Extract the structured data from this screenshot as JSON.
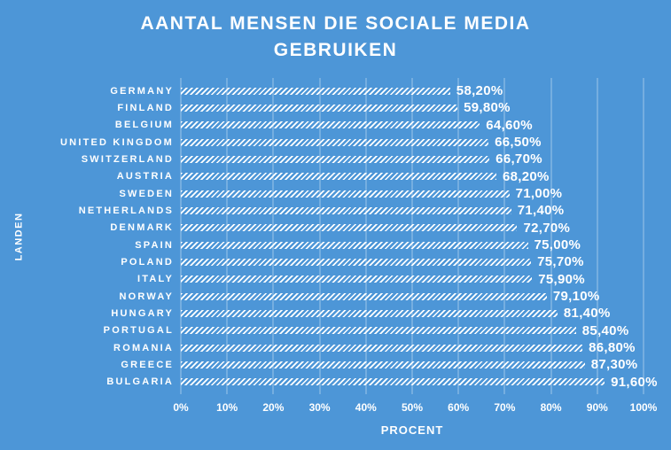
{
  "colors": {
    "background": "#4D96D7",
    "text": "#FFFFFF",
    "bar_fill": "#FFFFFF",
    "gridline": "rgba(255,255,255,0.45)"
  },
  "chart_data": {
    "type": "bar",
    "orientation": "horizontal",
    "title": "AANTAL MENSEN DIE SOCIALE MEDIA GEBRUIKEN",
    "xlabel": "PROCENT",
    "ylabel": "LANDEN",
    "xlim": [
      0,
      100
    ],
    "grid": true,
    "legend": false,
    "bar_pattern": "white diagonal stripes",
    "x_ticks": [
      "0%",
      "10%",
      "20%",
      "30%",
      "40%",
      "50%",
      "60%",
      "70%",
      "80%",
      "90%",
      "100%"
    ],
    "categories": [
      "GERMANY",
      "FINLAND",
      "BELGIUM",
      "UNITED KINGDOM",
      "SWITZERLAND",
      "AUSTRIA",
      "SWEDEN",
      "NETHERLANDS",
      "DENMARK",
      "SPAIN",
      "POLAND",
      "ITALY",
      "NORWAY",
      "HUNGARY",
      "PORTUGAL",
      "ROMANIA",
      "GREECE",
      "BULGARIA"
    ],
    "values": [
      58.2,
      59.8,
      64.6,
      66.5,
      66.7,
      68.2,
      71.0,
      71.4,
      72.7,
      75.0,
      75.7,
      75.9,
      79.1,
      81.4,
      85.4,
      86.8,
      87.3,
      91.6
    ],
    "value_labels": [
      "58,20%",
      "59,80%",
      "64,60%",
      "66,50%",
      "66,70%",
      "68,20%",
      "71,00%",
      "71,40%",
      "72,70%",
      "75,00%",
      "75,70%",
      "75,90%",
      "79,10%",
      "81,40%",
      "85,40%",
      "86,80%",
      "87,30%",
      "91,60%"
    ]
  }
}
